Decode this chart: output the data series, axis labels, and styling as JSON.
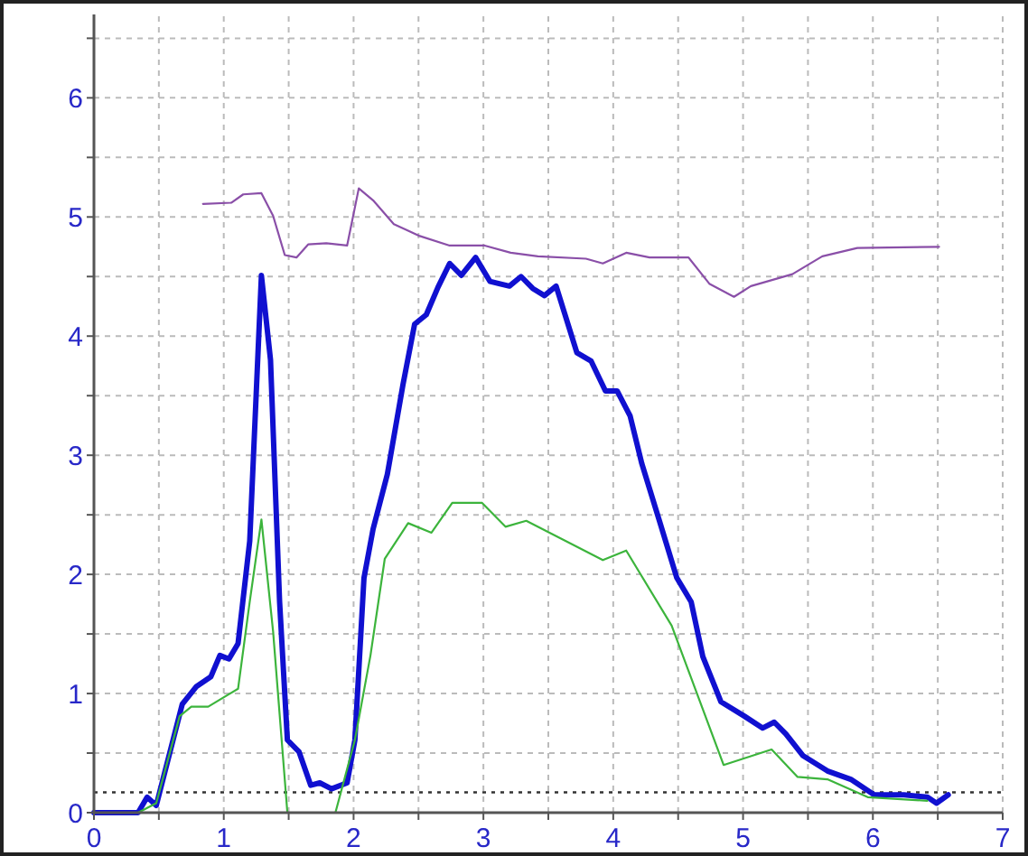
{
  "chart_data": {
    "type": "line",
    "xlim": [
      0,
      7
    ],
    "ylim": [
      0,
      6.7
    ],
    "xticks": [
      0,
      {
        "value": 0.5,
        "label": null
      },
      1,
      {
        "value": 1.5,
        "label": null
      },
      2,
      {
        "value": 2.5,
        "label": null
      },
      3,
      {
        "value": 3.5,
        "label": null
      },
      4,
      {
        "value": 4.5,
        "label": null
      },
      5,
      {
        "value": 5.5,
        "label": null
      },
      6,
      {
        "value": 6.5,
        "label": null
      },
      7
    ],
    "yticks": [
      0,
      {
        "value": 0.5,
        "label": null
      },
      1,
      {
        "value": 1.5,
        "label": null
      },
      2,
      {
        "value": 2.5,
        "label": null
      },
      3,
      {
        "value": 3.5,
        "label": null
      },
      4,
      {
        "value": 4.5,
        "label": null
      },
      5,
      {
        "value": 5.5,
        "label": null
      },
      6,
      {
        "value": 6.5,
        "label": null
      }
    ],
    "grid": true,
    "marker": "none",
    "line_style": "solid",
    "ref_lines": [
      {
        "axis": "y",
        "value": 0.17,
        "color": "#333333",
        "line_style": "dotted"
      }
    ],
    "series": [
      {
        "color": "#1010d0",
        "x": [
          0,
          0.34,
          0.41,
          0.48,
          0.68,
          0.79,
          0.9,
          0.97,
          1.04,
          1.11,
          1.2,
          1.29,
          1.36,
          1.43,
          1.49,
          1.58,
          1.67,
          1.74,
          1.83,
          1.95,
          2.01,
          2.08,
          2.15,
          2.26,
          2.38,
          2.47,
          2.56,
          2.65,
          2.74,
          2.83,
          2.94,
          3.05,
          3.2,
          3.29,
          3.38,
          3.47,
          3.56,
          3.72,
          3.83,
          3.94,
          4.03,
          4.13,
          4.22,
          4.35,
          4.49,
          4.6,
          4.69,
          4.83,
          5.01,
          5.15,
          5.24,
          5.33,
          5.46,
          5.65,
          5.83,
          6.01,
          6.24,
          6.42,
          6.49,
          6.58
        ],
        "values": [
          0,
          0,
          0.13,
          0.06,
          0.91,
          1.06,
          1.14,
          1.32,
          1.29,
          1.42,
          2.28,
          4.51,
          3.8,
          1.77,
          0.61,
          0.51,
          0.23,
          0.25,
          0.2,
          0.25,
          0.61,
          1.97,
          2.38,
          2.84,
          3.59,
          4.1,
          4.18,
          4.41,
          4.61,
          4.51,
          4.66,
          4.46,
          4.42,
          4.5,
          4.4,
          4.34,
          4.42,
          3.86,
          3.79,
          3.54,
          3.54,
          3.33,
          2.93,
          2.47,
          1.97,
          1.77,
          1.31,
          0.93,
          0.81,
          0.71,
          0.76,
          0.66,
          0.48,
          0.35,
          0.28,
          0.15,
          0.15,
          0.13,
          0.08,
          0.15
        ]
      },
      {
        "color": "#3cb43c",
        "x": [
          0,
          0.34,
          0.48,
          0.66,
          0.75,
          0.88,
          1.11,
          1.2,
          1.29,
          1.38,
          1.49,
          1.86,
          2.01,
          2.13,
          2.24,
          2.42,
          2.6,
          2.76,
          2.99,
          3.17,
          3.33,
          3.92,
          4.1,
          4.45,
          4.85,
          5.22,
          5.42,
          5.65,
          5.96,
          6.42
        ],
        "values": [
          0,
          0,
          0.08,
          0.81,
          0.89,
          0.89,
          1.04,
          1.77,
          2.46,
          1.52,
          0,
          0,
          0.61,
          1.32,
          2.13,
          2.43,
          2.35,
          2.6,
          2.6,
          2.4,
          2.45,
          2.12,
          2.2,
          1.57,
          0.4,
          0.53,
          0.3,
          0.28,
          0.13,
          0.1
        ]
      },
      {
        "color": "#8a4fa8",
        "x": [
          0.84,
          1.06,
          1.15,
          1.29,
          1.38,
          1.47,
          1.56,
          1.65,
          1.79,
          1.95,
          2.04,
          2.15,
          2.31,
          2.51,
          2.74,
          3.01,
          3.21,
          3.42,
          3.79,
          3.92,
          4.1,
          4.28,
          4.58,
          4.74,
          4.93,
          5.06,
          5.38,
          5.61,
          5.88,
          6.51
        ],
        "values": [
          5.11,
          5.12,
          5.19,
          5.2,
          5.01,
          4.68,
          4.66,
          4.77,
          4.78,
          4.76,
          5.24,
          5.14,
          4.94,
          4.84,
          4.76,
          4.76,
          4.7,
          4.67,
          4.65,
          4.61,
          4.7,
          4.66,
          4.66,
          4.44,
          4.33,
          4.42,
          4.52,
          4.67,
          4.74,
          4.75
        ]
      }
    ]
  }
}
